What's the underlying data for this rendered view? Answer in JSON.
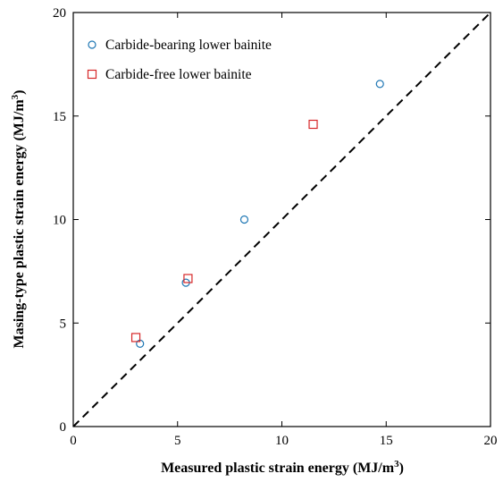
{
  "chart_data": {
    "type": "scatter",
    "xlabel": "Measured plastic strain energy (MJ/m",
    "xlabel_sup": "3",
    "xlabel_end": ")",
    "ylabel": "Masing-type plastic strain energy (MJ/m",
    "ylabel_sup": "3",
    "ylabel_end": ")",
    "xlim": [
      0,
      20
    ],
    "ylim": [
      0,
      20
    ],
    "xticks": [
      0,
      5,
      10,
      15,
      20
    ],
    "yticks": [
      0,
      5,
      10,
      15,
      20
    ],
    "grid": false,
    "legend_position": "top-left",
    "reference_line": {
      "style": "dashed",
      "x": [
        0,
        20
      ],
      "y": [
        0,
        20
      ],
      "color": "#000000"
    },
    "series": [
      {
        "name": "Carbide-bearing lower bainite",
        "marker": "circle",
        "color": "#1f77b4",
        "x": [
          3.2,
          5.4,
          8.2,
          14.7
        ],
        "y": [
          4.0,
          6.95,
          10.0,
          16.55
        ]
      },
      {
        "name": "Carbide-free lower bainite",
        "marker": "square",
        "color": "#d62728",
        "x": [
          3.0,
          5.5,
          11.5
        ],
        "y": [
          4.3,
          7.15,
          14.6
        ]
      }
    ]
  }
}
